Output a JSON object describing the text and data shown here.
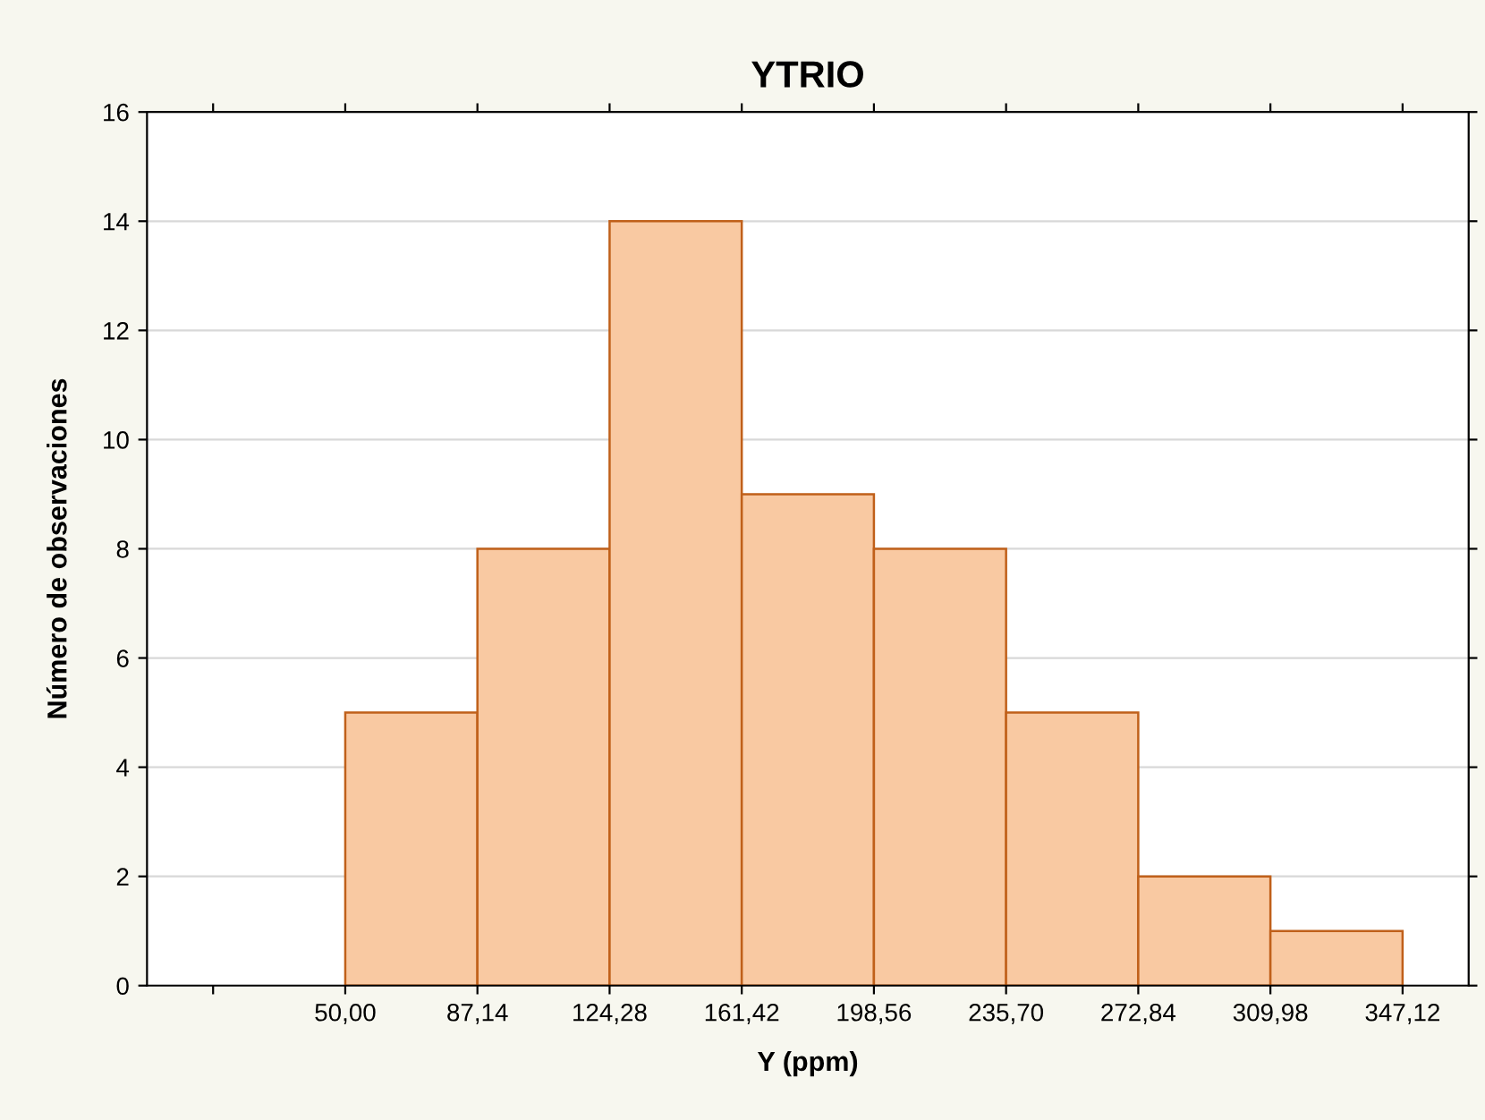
{
  "chart_data": {
    "type": "histogram",
    "title": "YTRIO",
    "xlabel": "Y (ppm)",
    "ylabel": "Número de observaciones",
    "bins": [
      50.0,
      87.14,
      124.28,
      161.42,
      198.56,
      235.7,
      272.84,
      309.98,
      347.12
    ],
    "values": [
      5,
      8,
      14,
      9,
      8,
      5,
      2,
      1
    ],
    "color": "#f9c9a2",
    "xlim": [
      -5.71,
      365.69
    ],
    "xticks": [
      {
        "value": 12.86,
        "label": null
      },
      {
        "value": 50.0,
        "label": "50,00"
      },
      {
        "value": 87.14,
        "label": "87,14"
      },
      {
        "value": 124.28,
        "label": "124,28"
      },
      {
        "value": 161.42,
        "label": "161,42"
      },
      {
        "value": 198.56,
        "label": "198,56"
      },
      {
        "value": 235.7,
        "label": "235,70"
      },
      {
        "value": 272.84,
        "label": "272,84"
      },
      {
        "value": 309.98,
        "label": "309,98"
      },
      {
        "value": 347.12,
        "label": "347,12"
      }
    ],
    "ylim": [
      0,
      16
    ],
    "yticks": [
      0,
      2,
      4,
      6,
      8,
      10,
      12,
      14,
      16
    ],
    "grid": "y"
  }
}
